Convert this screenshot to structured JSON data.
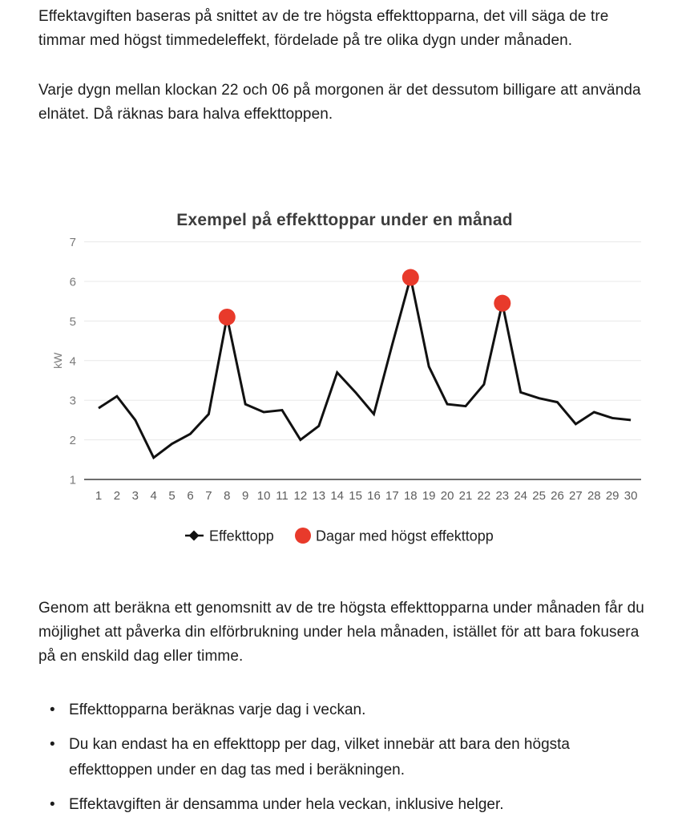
{
  "intro": {
    "p1": "Effektavgiften baseras på snittet av de tre högsta effekttopparna, det vill säga de tre timmar med högst timmedeleffekt, fördelade på tre olika dygn under månaden.",
    "p2": "Varje dygn mellan klockan 22 och 06 på morgonen är det dessutom billigare att använda elnätet. Då räknas bara halva effekttoppen."
  },
  "chart_data": {
    "type": "line",
    "title": "Exempel på effekttoppar under en månad",
    "ylabel": "kW",
    "xlabel": "",
    "ylim": [
      1,
      7
    ],
    "yticks": [
      1,
      2,
      3,
      4,
      5,
      6,
      7
    ],
    "grid": true,
    "legend_position": "bottom",
    "x": [
      1,
      2,
      3,
      4,
      5,
      6,
      7,
      8,
      9,
      10,
      11,
      12,
      13,
      14,
      15,
      16,
      17,
      18,
      19,
      20,
      21,
      22,
      23,
      24,
      25,
      26,
      27,
      28,
      29,
      30
    ],
    "series": [
      {
        "name": "Effekttopp",
        "values": [
          2.8,
          3.1,
          2.5,
          1.55,
          1.9,
          2.15,
          2.65,
          5.1,
          2.9,
          2.7,
          2.75,
          2.0,
          2.35,
          3.7,
          3.2,
          2.65,
          4.4,
          6.1,
          3.85,
          2.9,
          2.85,
          3.4,
          5.45,
          3.2,
          3.05,
          2.95,
          2.4,
          2.7,
          2.55,
          2.5
        ]
      }
    ],
    "highlight": {
      "name": "Dagar med högst effekttopp",
      "days": [
        8,
        18,
        23
      ],
      "values": [
        5.1,
        6.1,
        5.45
      ]
    },
    "colors": {
      "line": "#111111",
      "highlight": "#e83a2b",
      "grid": "#e8e8e8",
      "axis": "#3f3f3f",
      "ytick": "#7a7a7a",
      "xtick": "#5d5d5d"
    }
  },
  "outro": {
    "p1": "Genom att beräkna ett genomsnitt av de tre högsta effekttopparna under månaden får du möjlighet att påverka din elförbrukning under hela månaden, istället för att bara fokusera på en enskild dag eller timme.",
    "bullets": [
      "Effekttopparna beräknas varje dag i veckan.",
      "Du kan endast ha en effekttopp per dag, vilket innebär att bara den högsta effekttoppen under en dag tas med i beräkningen.",
      "Effektavgiften är densamma under hela veckan, inklusive helger."
    ]
  }
}
